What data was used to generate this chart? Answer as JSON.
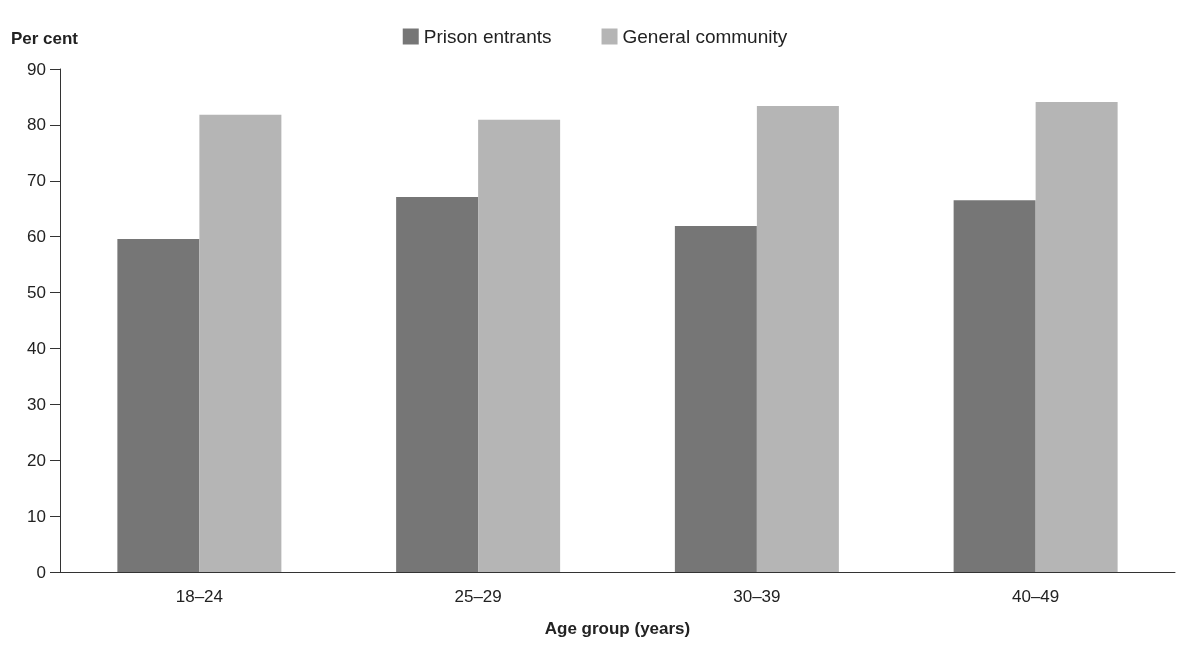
{
  "chart_data": {
    "type": "bar",
    "ylabel": "Per cent",
    "xlabel": "Age group (years)",
    "categories": [
      "18–24",
      "25–29",
      "30–39",
      "40–49"
    ],
    "series": [
      {
        "name": "Prison entrants",
        "color": "#767676",
        "values": [
          59.6,
          67.1,
          61.9,
          66.5
        ]
      },
      {
        "name": "General community",
        "color": "#b5b5b5",
        "values": [
          81.8,
          80.9,
          83.4,
          84.1
        ]
      }
    ],
    "ylim": [
      0,
      90
    ],
    "yticks": [
      0,
      10,
      20,
      30,
      40,
      50,
      60,
      70,
      80,
      90
    ],
    "grid": false,
    "legend": "top"
  }
}
